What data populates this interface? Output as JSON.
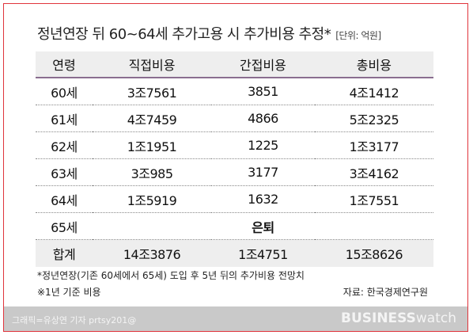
{
  "header": {
    "title": "정년연장 뒤 60~64세 추가고용 시 추가비용 추정*",
    "unit": "[단위: 억원]"
  },
  "table": {
    "columns": [
      "연령",
      "직접비용",
      "간접비용",
      "총비용"
    ],
    "rows": [
      [
        "60세",
        "3조7561",
        "3851",
        "4조1412"
      ],
      [
        "61세",
        "4조7459",
        "4866",
        "5조2325"
      ],
      [
        "62세",
        "1조1951",
        "1225",
        "1조3177"
      ],
      [
        "63세",
        "3조985",
        "3177",
        "3조4162"
      ],
      [
        "64세",
        "1조5919",
        "1632",
        "1조7551"
      ],
      [
        "65세",
        "은퇴"
      ],
      [
        "합계",
        "14조3876",
        "1조4751",
        "15조8626"
      ]
    ]
  },
  "notes": [
    "*정년연장(기존 60세에서 65세) 도입 후 5년 뒤의 추가비용 전망치",
    "※1년 기준 비용"
  ],
  "source": "자료: 한국경제연구원",
  "footer": {
    "credit": "그래픽=유상연 기자 prtsy201@",
    "brand_bold": "BUSINESS",
    "brand_light": "watch"
  }
}
